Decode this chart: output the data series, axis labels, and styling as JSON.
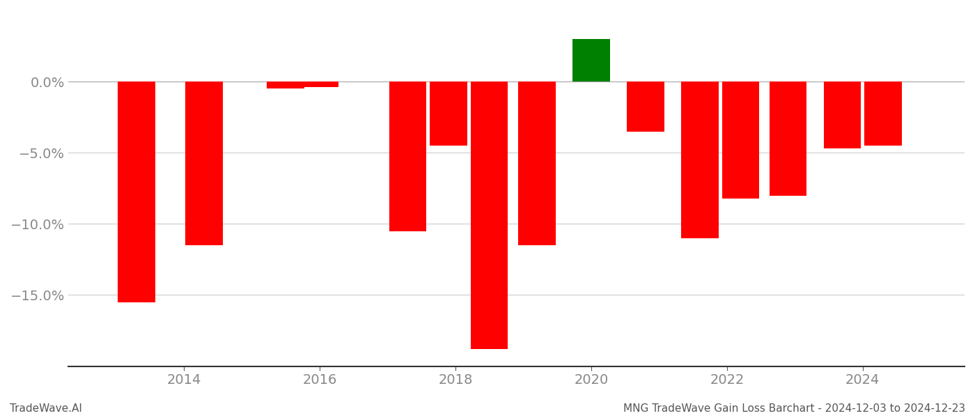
{
  "x_positions": [
    2013.3,
    2014.3,
    2015.5,
    2016.0,
    2017.3,
    2017.9,
    2018.5,
    2019.2,
    2020.0,
    2020.8,
    2021.6,
    2022.2,
    2022.9,
    2023.7,
    2024.3
  ],
  "values": [
    -15.5,
    -11.5,
    -0.5,
    -0.4,
    -10.5,
    -4.5,
    -18.8,
    -11.5,
    3.0,
    -3.5,
    -11.0,
    -8.2,
    -8.0,
    -4.7,
    -4.5
  ],
  "bar_width": 0.55,
  "colors": [
    "#ff0000",
    "#ff0000",
    "#ff0000",
    "#ff0000",
    "#ff0000",
    "#ff0000",
    "#ff0000",
    "#ff0000",
    "#008000",
    "#ff0000",
    "#ff0000",
    "#ff0000",
    "#ff0000",
    "#ff0000",
    "#ff0000"
  ],
  "ylim": [
    -20,
    5
  ],
  "yticks": [
    0.0,
    -5.0,
    -10.0,
    -15.0
  ],
  "xlim": [
    2012.3,
    2025.5
  ],
  "xticks": [
    2014,
    2016,
    2018,
    2020,
    2022,
    2024
  ],
  "footer_left": "TradeWave.AI",
  "footer_right": "MNG TradeWave Gain Loss Barchart - 2024-12-03 to 2024-12-23",
  "grid_color": "#cccccc",
  "tick_label_color": "#888888",
  "background_color": "#ffffff"
}
